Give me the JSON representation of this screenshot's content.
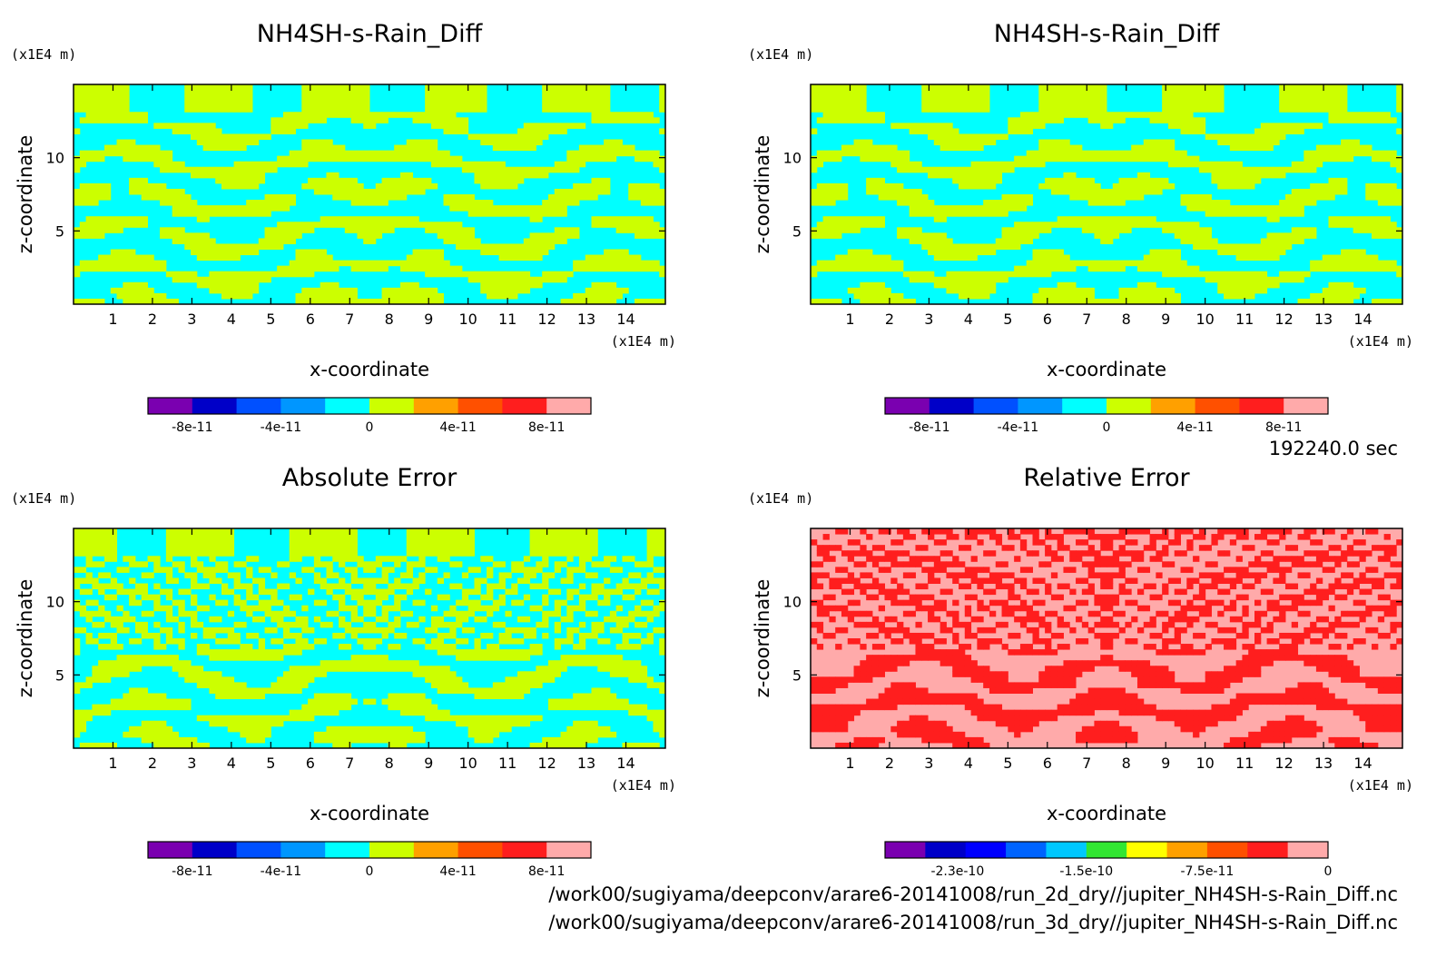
{
  "figure": {
    "time_label": "192240.0 sec",
    "footer_lines": [
      "/work00/sugiyama/deepconv/arare6-20141008/run_2d_dry//jupiter_NH4SH-s-Rain_Diff.nc",
      "/work00/sugiyama/deepconv/arare6-20141008/run_3d_dry//jupiter_NH4SH-s-Rain_Diff.nc"
    ]
  },
  "chart_data": [
    {
      "type": "heatmap",
      "title": "NH4SH-s-Rain_Diff",
      "xlabel": "x-coordinate",
      "ylabel": "z-coordinate",
      "x_unit": "(x1E4 m)",
      "y_unit": "(x1E4 m)",
      "xlim": [
        0,
        15
      ],
      "ylim": [
        0,
        15
      ],
      "x_ticks": [
        "1",
        "2",
        "3",
        "4",
        "5",
        "6",
        "7",
        "8",
        "9",
        "10",
        "11",
        "12",
        "13",
        "14"
      ],
      "y_ticks": [
        "5",
        "10"
      ],
      "dominant_colors": [
        "#00ffff",
        "#ccff00"
      ],
      "colorbar": {
        "colors": [
          "#7a00b0",
          "#0000c8",
          "#0050ff",
          "#0096ff",
          "#00ffff",
          "#ccff00",
          "#ffa000",
          "#ff5000",
          "#ff1e1e",
          "#ffaaaa"
        ],
        "tick_labels": [
          "-8e-11",
          "-4e-11",
          "0",
          "4e-11",
          "8e-11"
        ],
        "range": [
          -1e-10,
          1e-10
        ]
      }
    },
    {
      "type": "heatmap",
      "title": "NH4SH-s-Rain_Diff",
      "xlabel": "x-coordinate",
      "ylabel": "z-coordinate",
      "x_unit": "(x1E4 m)",
      "y_unit": "(x1E4 m)",
      "xlim": [
        0,
        15
      ],
      "ylim": [
        0,
        15
      ],
      "x_ticks": [
        "1",
        "2",
        "3",
        "4",
        "5",
        "6",
        "7",
        "8",
        "9",
        "10",
        "11",
        "12",
        "13",
        "14"
      ],
      "y_ticks": [
        "5",
        "10"
      ],
      "dominant_colors": [
        "#00ffff",
        "#ccff00"
      ],
      "colorbar": {
        "colors": [
          "#7a00b0",
          "#0000c8",
          "#0050ff",
          "#0096ff",
          "#00ffff",
          "#ccff00",
          "#ffa000",
          "#ff5000",
          "#ff1e1e",
          "#ffaaaa"
        ],
        "tick_labels": [
          "-8e-11",
          "-4e-11",
          "0",
          "4e-11",
          "8e-11"
        ],
        "range": [
          -1e-10,
          1e-10
        ]
      }
    },
    {
      "type": "heatmap",
      "title": "Absolute Error",
      "xlabel": "x-coordinate",
      "ylabel": "z-coordinate",
      "x_unit": "(x1E4 m)",
      "y_unit": "(x1E4 m)",
      "xlim": [
        0,
        15
      ],
      "ylim": [
        0,
        15
      ],
      "x_ticks": [
        "1",
        "2",
        "3",
        "4",
        "5",
        "6",
        "7",
        "8",
        "9",
        "10",
        "11",
        "12",
        "13",
        "14"
      ],
      "y_ticks": [
        "5",
        "10"
      ],
      "dominant_colors": [
        "#00ffff",
        "#ccff00"
      ],
      "colorbar": {
        "colors": [
          "#7a00b0",
          "#0000c8",
          "#0050ff",
          "#0096ff",
          "#00ffff",
          "#ccff00",
          "#ffa000",
          "#ff5000",
          "#ff1e1e",
          "#ffaaaa"
        ],
        "tick_labels": [
          "-8e-11",
          "-4e-11",
          "0",
          "4e-11",
          "8e-11"
        ],
        "range": [
          -1e-10,
          1e-10
        ]
      }
    },
    {
      "type": "heatmap",
      "title": "Relative Error",
      "xlabel": "x-coordinate",
      "ylabel": "z-coordinate",
      "x_unit": "(x1E4 m)",
      "y_unit": "(x1E4 m)",
      "xlim": [
        0,
        15
      ],
      "ylim": [
        0,
        15
      ],
      "x_ticks": [
        "1",
        "2",
        "3",
        "4",
        "5",
        "6",
        "7",
        "8",
        "9",
        "10",
        "11",
        "12",
        "13",
        "14"
      ],
      "y_ticks": [
        "5",
        "10"
      ],
      "dominant_colors": [
        "#ffaaaa",
        "#ff1e1e"
      ],
      "colorbar": {
        "colors": [
          "#7a00b0",
          "#0000c8",
          "#0000ff",
          "#0064ff",
          "#00c8ff",
          "#32e632",
          "#ffff00",
          "#ffa000",
          "#ff5000",
          "#ff1e1e",
          "#ffaaaa"
        ],
        "tick_labels": [
          "-2.3e-10",
          "-1.5e-10",
          "-7.5e-11",
          "0"
        ],
        "tick_values": [
          -2.3e-10,
          -1.5e-10,
          -7.5e-11,
          0
        ],
        "range": [
          -2.75e-10,
          0
        ]
      }
    }
  ]
}
